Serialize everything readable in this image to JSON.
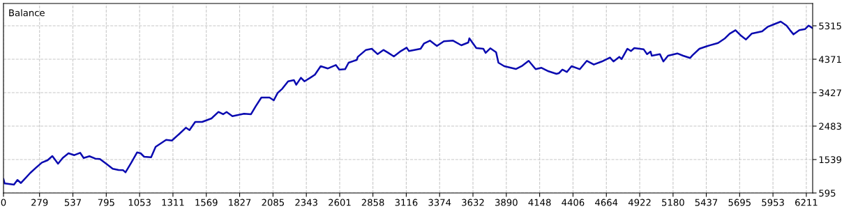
{
  "chart_data": {
    "type": "line",
    "title": "Balance",
    "x": [
      0,
      9,
      81,
      108,
      135,
      207,
      252,
      297,
      341,
      378,
      422,
      458,
      503,
      548,
      593,
      620,
      665,
      710,
      746,
      800,
      845,
      890,
      926,
      944,
      989,
      1034,
      1061,
      1088,
      1142,
      1177,
      1258,
      1303,
      1357,
      1411,
      1439,
      1483,
      1537,
      1609,
      1663,
      1699,
      1726,
      1771,
      1861,
      1915,
      1951,
      1995,
      2058,
      2091,
      2121,
      2157,
      2202,
      2247,
      2265,
      2301,
      2328,
      2373,
      2409,
      2454,
      2508,
      2571,
      2598,
      2643,
      2670,
      2733,
      2741,
      2804,
      2849,
      2894,
      2939,
      2975,
      3020,
      3074,
      3119,
      3137,
      3227,
      3254,
      3299,
      3353,
      3407,
      3478,
      3542,
      3596,
      3604,
      3658,
      3712,
      3730,
      3766,
      3811,
      3829,
      3874,
      3964,
      4009,
      4063,
      4117,
      4162,
      4216,
      4278,
      4297,
      4324,
      4359,
      4395,
      4459,
      4513,
      4567,
      4629,
      4692,
      4719,
      4764,
      4782,
      4827,
      4854,
      4880,
      4952,
      4979,
      5006,
      5015,
      5078,
      5105,
      5141,
      5213,
      5258,
      5312,
      5330,
      5384,
      5447,
      5528,
      5582,
      5618,
      5663,
      5708,
      5744,
      5788,
      5869,
      5914,
      5959,
      6013,
      6058,
      6085,
      6112,
      6157,
      6202,
      6229,
      6256
    ],
    "series": [
      {
        "color": "#0a0ab0",
        "values": [
          988,
          864,
          831,
          963,
          876,
          1160,
          1309,
          1454,
          1520,
          1637,
          1421,
          1584,
          1716,
          1663,
          1730,
          1584,
          1632,
          1565,
          1553,
          1407,
          1278,
          1244,
          1238,
          1179,
          1454,
          1742,
          1716,
          1618,
          1604,
          1899,
          2096,
          2076,
          2253,
          2438,
          2371,
          2601,
          2601,
          2700,
          2883,
          2818,
          2883,
          2765,
          2831,
          2818,
          3040,
          3290,
          3290,
          3211,
          3421,
          3539,
          3748,
          3782,
          3650,
          3847,
          3748,
          3847,
          3933,
          4175,
          4110,
          4208,
          4077,
          4090,
          4273,
          4352,
          4437,
          4634,
          4667,
          4516,
          4634,
          4555,
          4450,
          4601,
          4699,
          4601,
          4667,
          4818,
          4896,
          4745,
          4877,
          4896,
          4765,
          4844,
          4962,
          4686,
          4667,
          4549,
          4680,
          4568,
          4273,
          4175,
          4096,
          4175,
          4326,
          4090,
          4129,
          4031,
          3959,
          3978,
          4077,
          4011,
          4175,
          4090,
          4326,
          4221,
          4307,
          4418,
          4307,
          4437,
          4372,
          4667,
          4601,
          4686,
          4654,
          4516,
          4588,
          4470,
          4516,
          4307,
          4470,
          4535,
          4470,
          4405,
          4483,
          4667,
          4745,
          4830,
          4962,
          5093,
          5191,
          5028,
          4929,
          5093,
          5159,
          5290,
          5355,
          5433,
          5322,
          5191,
          5073,
          5191,
          5224,
          5322,
          5256
        ]
      }
    ],
    "xlim": [
      0,
      6260
    ],
    "xticks": [
      0,
      279,
      537,
      795,
      1053,
      1311,
      1569,
      1827,
      2085,
      2343,
      2601,
      2858,
      3116,
      3374,
      3632,
      3890,
      4148,
      4406,
      4664,
      4922,
      5180,
      5437,
      5695,
      5953,
      6211
    ],
    "ylim": [
      595,
      5945
    ],
    "yticks": [
      595,
      1539,
      2483,
      3427,
      4371,
      5315
    ],
    "grid": true,
    "marker": "none",
    "line_style": "solid"
  }
}
